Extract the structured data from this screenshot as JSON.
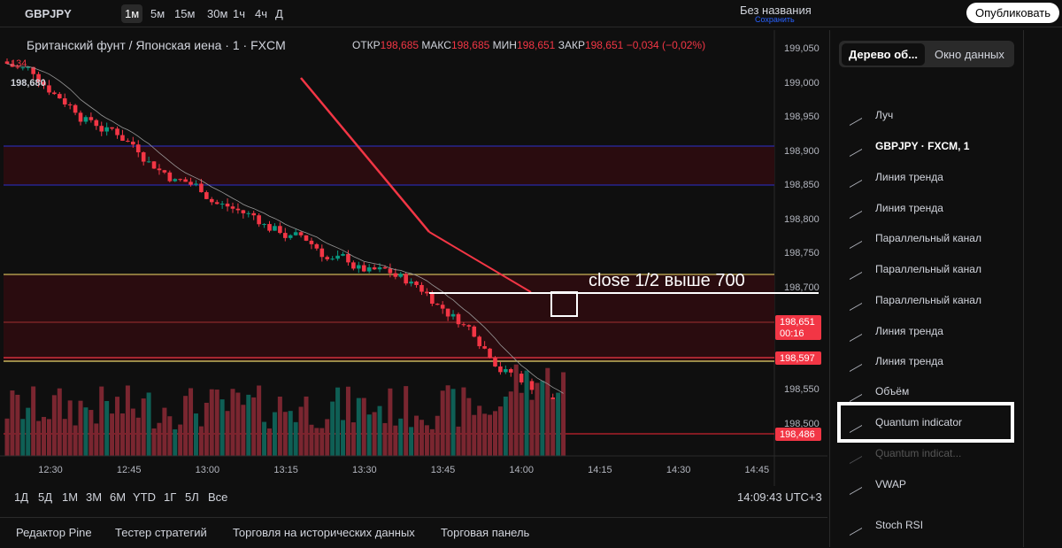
{
  "toolbar": {
    "symbol": "GBPJPY",
    "intervals": [
      "1м",
      "5м",
      "15м",
      "30м",
      "1ч",
      "4ч",
      "Д"
    ],
    "layout_name": "Без названия",
    "layout_status": "Сохранить",
    "publish": "Опубликовать"
  },
  "legend": {
    "title": "Британский фунт / Японская иена · 1 · FXCM",
    "open_label": "ОТКР",
    "open": "198,685",
    "high_label": "МАКС",
    "high": "198,685",
    "low_label": "МИН",
    "low": "198,651",
    "close_label": "ЗАКР",
    "close": "198,651",
    "change": "−0,034 (−0,02%)",
    "volume": "134",
    "price": "198,680"
  },
  "annotation": "close 1/2 выше 700",
  "price_axis": {
    "ticks": [
      "199,050",
      "199,000",
      "198,950",
      "198,900",
      "198,850",
      "198,800",
      "198,750",
      "198,700",
      "198,550",
      "198,500"
    ],
    "badges": [
      {
        "price": "198,651",
        "timer": "00:16"
      },
      {
        "price": "198,597"
      },
      {
        "price": "198,486"
      }
    ]
  },
  "time_axis": [
    "12:30",
    "12:45",
    "13:00",
    "13:15",
    "13:30",
    "13:45",
    "14:00",
    "14:15",
    "14:30",
    "14:45"
  ],
  "ranges": [
    "1Д",
    "5Д",
    "1М",
    "3М",
    "6М",
    "YTD",
    "1Г",
    "5Л",
    "Все"
  ],
  "clock": "14:09:43 UTC+3",
  "bottom_tabs": [
    "Редактор Pine",
    "Тестер стратегий",
    "Торговля на исторических данных",
    "Торговая панель"
  ],
  "panel": {
    "tabs": [
      "Дерево об...",
      "Окно данных"
    ],
    "items": [
      "Луч",
      "GBPJPY · FXCM, 1",
      "Линия тренда",
      "Линия тренда",
      "Параллельный канал",
      "Параллельный канал",
      "Параллельный канал",
      "Линия тренда",
      "Линия тренда",
      "Объём",
      "Quantum indicator",
      "Quantum indicat...",
      "VWAP",
      "Stoch RSI"
    ]
  }
}
